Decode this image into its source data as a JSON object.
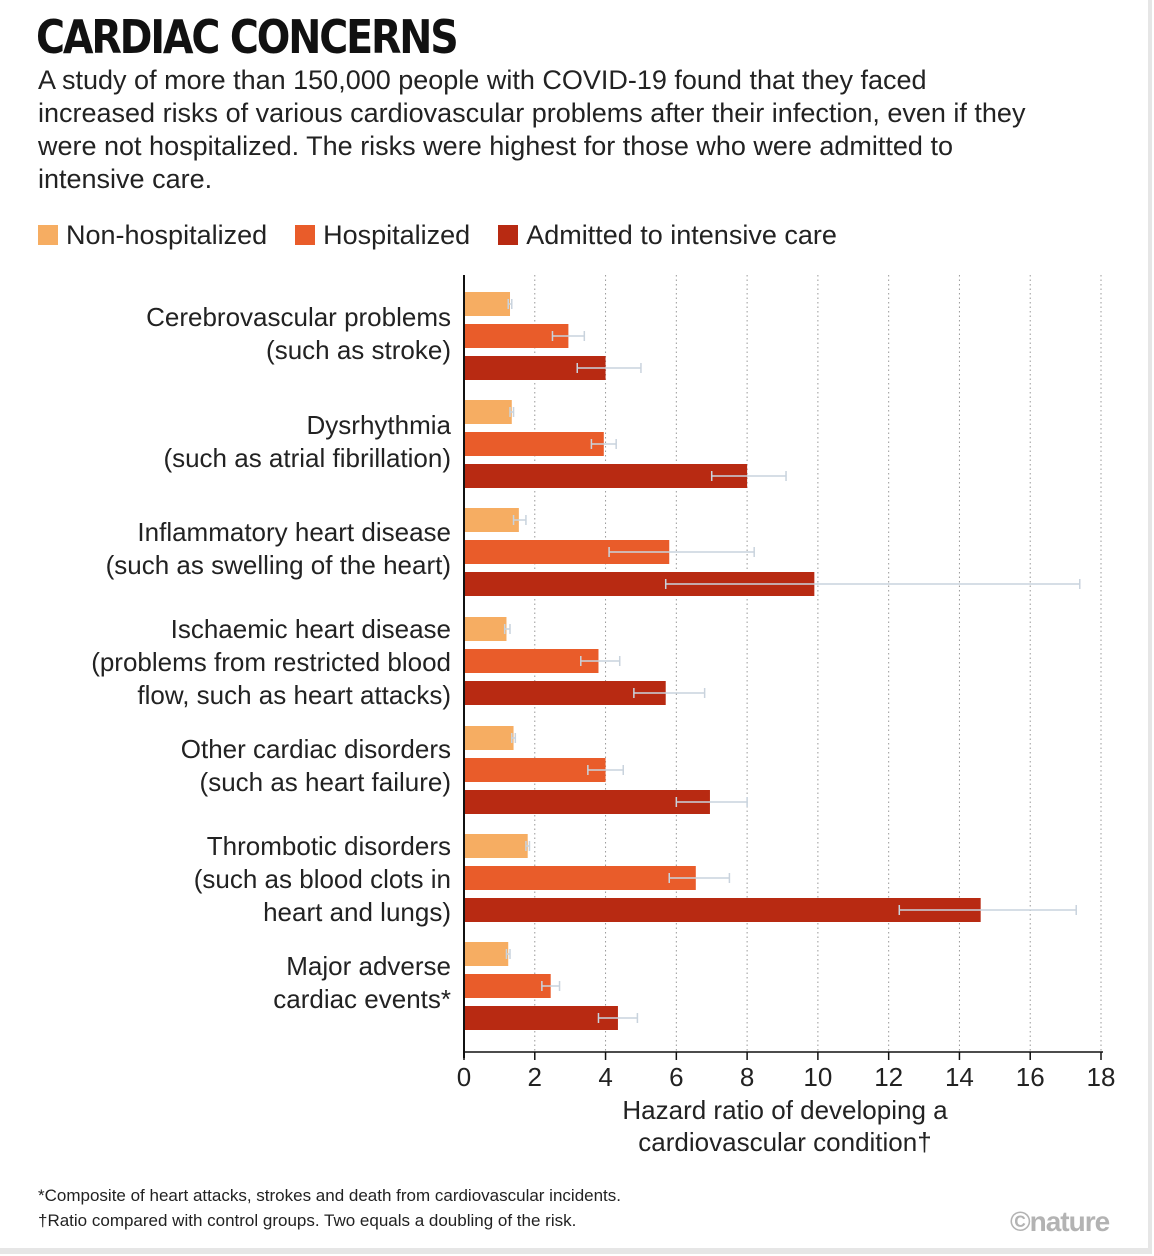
{
  "header": {
    "title": "CARDIAC CONCERNS",
    "subtitle": "A study of more than 150,000 people with COVID-19 found that they faced increased risks of various cardiovascular problems after their infection, even if they were not hospitalized. The risks were highest for those who were admitted to intensive care."
  },
  "colors": {
    "non_hospitalized": "#f6ad62",
    "hospitalized": "#e95c2a",
    "icu": "#b82a12",
    "error_bar": "#c9d3dd",
    "grid": "#999999"
  },
  "chart_data": {
    "type": "bar",
    "orientation": "horizontal",
    "categories": [
      [
        "Cerebrovascular problems",
        "(such as stroke)"
      ],
      [
        "Dysrhythmia",
        "(such as atrial fibrillation)"
      ],
      [
        "Inflammatory heart disease",
        "(such as swelling of the heart)"
      ],
      [
        "Ischaemic heart disease",
        "(problems from restricted blood",
        "flow, such as heart attacks)"
      ],
      [
        "Other cardiac disorders",
        "(such as heart failure)"
      ],
      [
        "Thrombotic disorders",
        "(such as blood clots in",
        "heart and lungs)"
      ],
      [
        "Major adverse",
        "cardiac events*"
      ]
    ],
    "series": [
      {
        "name": "Non-hospitalized",
        "values": [
          1.3,
          1.35,
          1.55,
          1.2,
          1.4,
          1.8,
          1.25
        ],
        "ci_low": [
          1.25,
          1.3,
          1.4,
          1.15,
          1.35,
          1.75,
          1.2
        ],
        "ci_high": [
          1.35,
          1.4,
          1.75,
          1.3,
          1.45,
          1.85,
          1.3
        ]
      },
      {
        "name": "Hospitalized",
        "values": [
          2.95,
          3.95,
          5.8,
          3.8,
          4.0,
          6.55,
          2.45
        ],
        "ci_low": [
          2.5,
          3.6,
          4.1,
          3.3,
          3.5,
          5.8,
          2.2
        ],
        "ci_high": [
          3.4,
          4.3,
          8.2,
          4.4,
          4.5,
          7.5,
          2.7
        ]
      },
      {
        "name": "Admitted to intensive care",
        "values": [
          4.0,
          8.0,
          9.9,
          5.7,
          6.95,
          14.6,
          4.35
        ],
        "ci_low": [
          3.2,
          7.0,
          5.7,
          4.8,
          6.0,
          12.3,
          3.8
        ],
        "ci_high": [
          5.0,
          9.1,
          17.4,
          6.8,
          8.0,
          17.3,
          4.9
        ]
      }
    ],
    "x_ticks": [
      0,
      2,
      4,
      6,
      8,
      10,
      12,
      14,
      16,
      18
    ],
    "xlim": [
      0,
      18
    ],
    "xlabel": "Hazard ratio of developing a cardiovascular condition†",
    "grid": "vertical-dotted",
    "legend_position": "top"
  },
  "footnotes": [
    "*Composite of heart attacks, strokes and death from cardiovascular incidents.",
    "†Ratio compared with control groups. Two equals a doubling of the risk."
  ],
  "logo": "©nature"
}
